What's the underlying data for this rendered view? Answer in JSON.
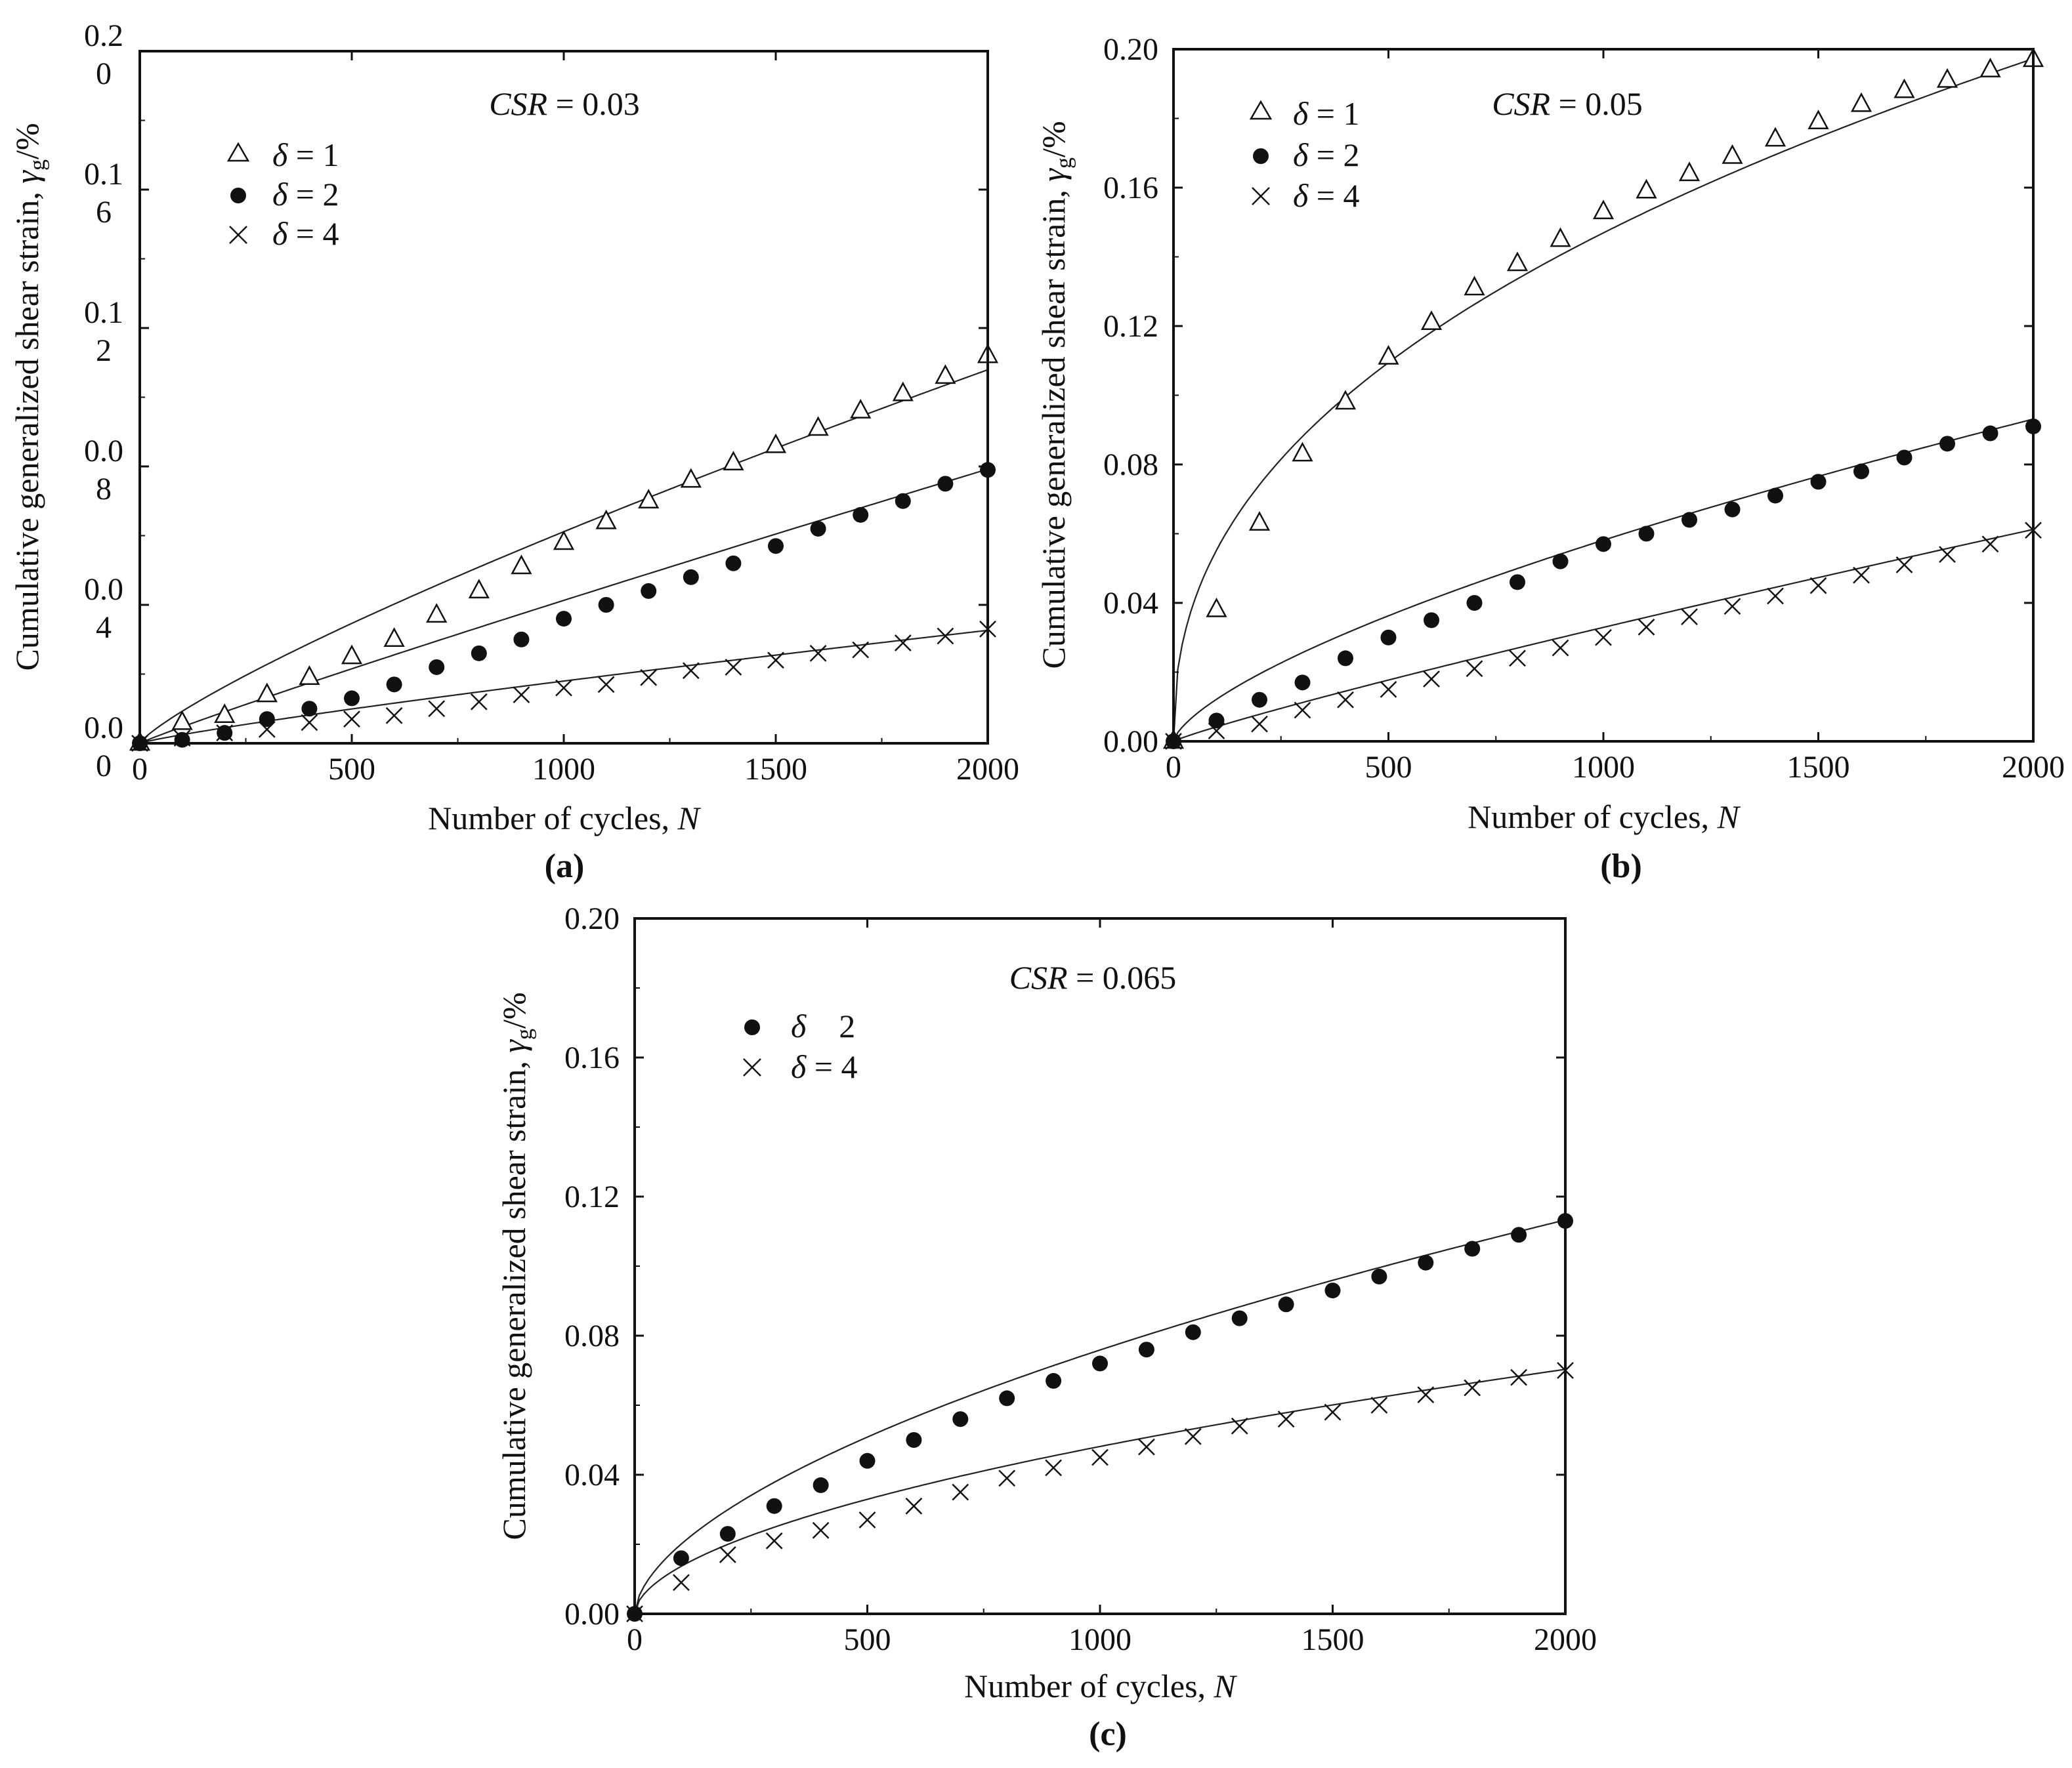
{
  "figure": {
    "charts": [
      "a",
      "b",
      "c"
    ]
  },
  "chart_data": [
    {
      "id": "a",
      "type": "scatter",
      "panel_label": "(a)",
      "annotation": {
        "var": "CSR",
        "eq": " = 0.03"
      },
      "xlabel": {
        "text": "Number of cycles, ",
        "var": "N"
      },
      "ylabel": {
        "text": "Cumulative generalized shear strain,  ",
        "sym": "γ",
        "sub": "g",
        "unit": "/%"
      },
      "xlim": [
        0,
        2000
      ],
      "ylim": [
        0,
        0.2
      ],
      "xticks": [
        0,
        500,
        1000,
        1500,
        2000
      ],
      "xtick_labels": [
        "0",
        "500",
        "1000",
        "1500",
        "2000"
      ],
      "yticks": [
        0,
        0.04,
        0.08,
        0.12,
        0.16,
        0.2
      ],
      "ytick_labels": [
        [
          "0.0",
          "0"
        ],
        [
          "0.0",
          "4"
        ],
        [
          "0.0",
          "8"
        ],
        [
          "0.1",
          "2"
        ],
        [
          "0.1",
          "6"
        ],
        [
          "0.2",
          "0"
        ]
      ],
      "x": [
        0,
        100,
        200,
        300,
        400,
        500,
        600,
        700,
        800,
        900,
        1000,
        1100,
        1200,
        1300,
        1400,
        1500,
        1600,
        1700,
        1800,
        1900,
        2000
      ],
      "series": [
        {
          "name": "δ = 1",
          "label_pre": "δ",
          "label_post": " = 1",
          "marker": "triangle",
          "values": [
            0,
            0.006,
            0.008,
            0.014,
            0.019,
            0.025,
            0.03,
            0.037,
            0.044,
            0.051,
            0.058,
            0.064,
            0.07,
            0.076,
            0.081,
            0.086,
            0.091,
            0.096,
            0.101,
            0.106,
            0.112
          ],
          "fit": {
            "a": 0.000212,
            "b": 0.82
          }
        },
        {
          "name": "δ = 2",
          "label_pre": "δ",
          "label_post": " = 2",
          "marker": "circle",
          "values": [
            0,
            0.001,
            0.003,
            0.007,
            0.01,
            0.013,
            0.017,
            0.022,
            0.026,
            0.03,
            0.036,
            0.04,
            0.044,
            0.048,
            0.052,
            0.057,
            0.062,
            0.066,
            0.07,
            0.075,
            0.079
          ],
          "fit": {
            "a": 6.25e-05,
            "b": 0.94
          }
        },
        {
          "name": "δ = 4",
          "label_pre": "δ",
          "label_post": " = 4",
          "marker": "cross",
          "values": [
            0,
            0.0015,
            0.003,
            0.004,
            0.006,
            0.007,
            0.008,
            0.01,
            0.012,
            0.014,
            0.016,
            0.017,
            0.019,
            0.021,
            0.022,
            0.024,
            0.026,
            0.027,
            0.029,
            0.031,
            0.033
          ],
          "fit": {
            "a": 4.73e-05,
            "b": 0.86
          }
        }
      ]
    },
    {
      "id": "b",
      "type": "scatter",
      "panel_label": "(b)",
      "annotation": {
        "var": "CSR",
        "eq": " = 0.05"
      },
      "xlabel": {
        "text": "Number of cycles, ",
        "var": "N"
      },
      "ylabel": {
        "text": "Cumulative generalized shear strain,  ",
        "sym": "γ",
        "sub": "g",
        "unit": "/%"
      },
      "xlim": [
        0,
        2000
      ],
      "ylim": [
        0,
        0.2
      ],
      "xticks": [
        0,
        500,
        1000,
        1500,
        2000
      ],
      "xtick_labels": [
        "0",
        "500",
        "1000",
        "1500",
        "2000"
      ],
      "yticks": [
        0,
        0.04,
        0.08,
        0.12,
        0.16,
        0.2
      ],
      "ytick_labels": [
        "0.00",
        "0.04",
        "0.08",
        "0.12",
        "0.16",
        "0.20"
      ],
      "x": [
        0,
        100,
        200,
        300,
        400,
        500,
        600,
        700,
        800,
        900,
        1000,
        1100,
        1200,
        1300,
        1400,
        1500,
        1600,
        1700,
        1800,
        1900,
        2000
      ],
      "series": [
        {
          "name": "δ = 1",
          "label_pre": "δ",
          "label_post": " = 1",
          "marker": "triangle",
          "values": [
            0,
            0.038,
            0.063,
            0.083,
            0.098,
            0.111,
            0.121,
            0.131,
            0.138,
            0.145,
            0.153,
            0.159,
            0.164,
            0.169,
            0.174,
            0.179,
            0.184,
            0.188,
            0.191,
            0.194,
            0.197
          ],
          "fit": {
            "a": 0.0078,
            "b": 0.425
          }
        },
        {
          "name": "δ = 2",
          "label_pre": "δ",
          "label_post": " = 2",
          "marker": "circle",
          "values": [
            0,
            0.006,
            0.012,
            0.017,
            0.024,
            0.03,
            0.035,
            0.04,
            0.046,
            0.052,
            0.057,
            0.06,
            0.064,
            0.067,
            0.071,
            0.075,
            0.078,
            0.082,
            0.086,
            0.089,
            0.091
          ],
          "fit": {
            "a": 0.00053,
            "b": 0.68
          }
        },
        {
          "name": "δ = 4",
          "label_pre": "δ",
          "label_post": " = 4",
          "marker": "cross",
          "values": [
            0,
            0.003,
            0.005,
            0.009,
            0.012,
            0.015,
            0.018,
            0.021,
            0.024,
            0.027,
            0.03,
            0.033,
            0.036,
            0.039,
            0.042,
            0.045,
            0.048,
            0.051,
            0.054,
            0.057,
            0.061
          ],
          "fit": {
            "a": 6.8e-05,
            "b": 0.895
          }
        }
      ]
    },
    {
      "id": "c",
      "type": "scatter",
      "panel_label": "(c)",
      "annotation": {
        "var": "CSR",
        "eq": " = 0.065"
      },
      "xlabel": {
        "text": "Number of cycles, ",
        "var": "N"
      },
      "ylabel": {
        "text": "Cumulative generalized shear strain,  ",
        "sym": "γ",
        "sub": "g",
        "unit": "/%"
      },
      "xlim": [
        0,
        2000
      ],
      "ylim": [
        0,
        0.2
      ],
      "xticks": [
        0,
        500,
        1000,
        1500,
        2000
      ],
      "xtick_labels": [
        "0",
        "500",
        "1000",
        "1500",
        "2000"
      ],
      "yticks": [
        0,
        0.04,
        0.08,
        0.12,
        0.16,
        0.2
      ],
      "ytick_labels": [
        "0.00",
        "0.04",
        "0.08",
        "0.12",
        "0.16",
        "0.20"
      ],
      "x": [
        0,
        100,
        200,
        300,
        400,
        500,
        600,
        700,
        800,
        900,
        1000,
        1100,
        1200,
        1300,
        1400,
        1500,
        1600,
        1700,
        1800,
        1900,
        2000
      ],
      "series": [
        {
          "name": "δ    2",
          "label_pre": "δ",
          "label_post": "    2",
          "marker": "circle",
          "values": [
            0,
            0.016,
            0.023,
            0.031,
            0.037,
            0.044,
            0.05,
            0.056,
            0.062,
            0.067,
            0.072,
            0.076,
            0.081,
            0.085,
            0.089,
            0.093,
            0.097,
            0.101,
            0.105,
            0.109,
            0.113
          ],
          "fit": {
            "a": 0.0014,
            "b": 0.578
          }
        },
        {
          "name": "δ = 4",
          "label_pre": "δ",
          "label_post": " = 4",
          "marker": "cross",
          "values": [
            0,
            0.009,
            0.017,
            0.021,
            0.024,
            0.027,
            0.031,
            0.035,
            0.039,
            0.042,
            0.045,
            0.048,
            0.051,
            0.054,
            0.056,
            0.058,
            0.06,
            0.063,
            0.065,
            0.068,
            0.07
          ],
          "fit": {
            "a": 0.0011,
            "b": 0.547
          }
        }
      ]
    }
  ]
}
